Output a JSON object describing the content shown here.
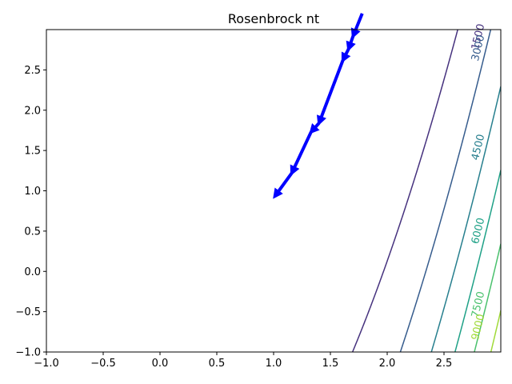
{
  "chart_data": {
    "type": "line",
    "title": "Rosenbrock nt",
    "xlabel": "",
    "ylabel": "",
    "xlim": [
      -1.0,
      3.0
    ],
    "ylim": [
      -1.0,
      3.0
    ],
    "x_ticks": [
      -1.0,
      -0.5,
      0.0,
      0.5,
      1.0,
      1.5,
      2.0,
      2.5
    ],
    "x_tick_labels": [
      "−1.0",
      "−0.5",
      "0.0",
      "0.5",
      "1.0",
      "1.5",
      "2.0",
      "2.5"
    ],
    "y_ticks": [
      -1.0,
      -0.5,
      0.0,
      0.5,
      1.0,
      1.5,
      2.0,
      2.5
    ],
    "y_tick_labels": [
      "−1.0",
      "−0.5",
      "0.0",
      "0.5",
      "1.0",
      "1.5",
      "2.0",
      "2.5"
    ],
    "grid": false,
    "contour_levels": [
      {
        "level": 1500,
        "label": "1500",
        "color": "#46327e"
      },
      {
        "level": 3000,
        "label": "3000",
        "color": "#365c8d"
      },
      {
        "level": 4500,
        "label": "4500",
        "color": "#277f8e"
      },
      {
        "level": 6000,
        "label": "6000",
        "color": "#1fa187"
      },
      {
        "level": 7500,
        "label": "7500",
        "color": "#4ac16d"
      },
      {
        "level": 9000,
        "label": "9000",
        "color": "#a0da39"
      }
    ],
    "path": {
      "color": "#0000ff",
      "points": [
        [
          1.78,
          3.2
        ],
        [
          1.7,
          2.92
        ],
        [
          1.66,
          2.76
        ],
        [
          1.61,
          2.62
        ],
        [
          1.4,
          1.84
        ],
        [
          1.33,
          1.73
        ],
        [
          1.16,
          1.22
        ],
        [
          1.01,
          0.93
        ]
      ]
    }
  }
}
